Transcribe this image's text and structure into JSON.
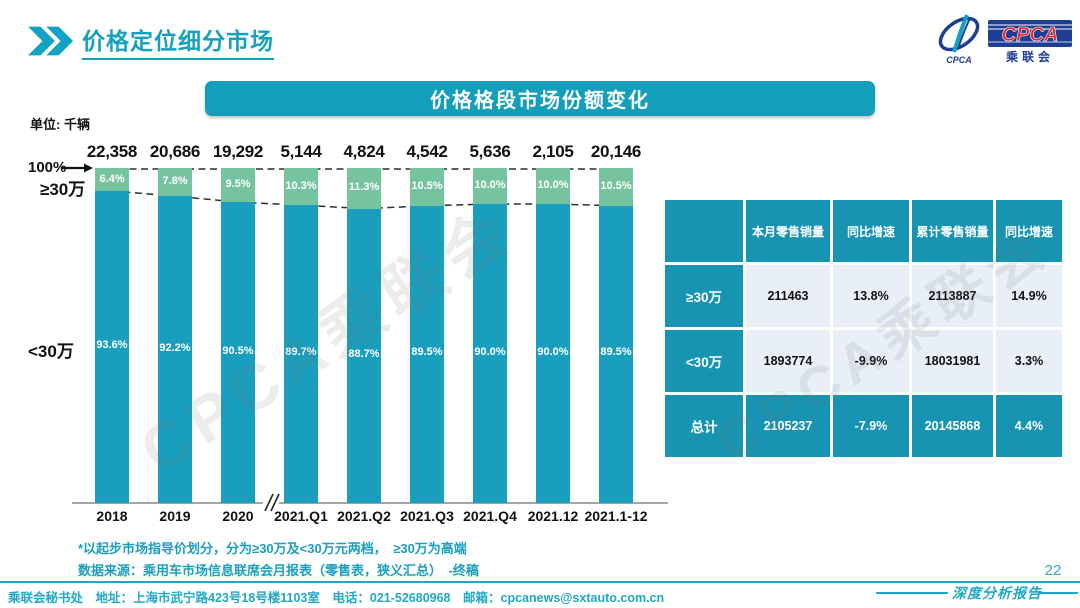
{
  "page": {
    "title": "价格定位细分市场",
    "banner_title": "价格格段市场份额变化",
    "unit_label": "单位: 千辆",
    "watermark": "CPCA乘联会",
    "notes": [
      "*以起步市场指导价划分，分为≥30万及<30万元两档，　≥30万为高端",
      "数据来源：乘用车市场信息联席会月报表（零售表，狭义汇总）　-终稿"
    ],
    "footer_text": "乘联会秘书处　地址：上海市武宁路423号18号楼1103室　电话：021-52680968　邮箱：cpcanews@sxtauto.com.cn",
    "report_label": "深度分析报告",
    "page_number": "22"
  },
  "logo": {
    "en": "CPCA",
    "cn": "乘联会",
    "small": "CPCA"
  },
  "chart_data": {
    "type": "bar",
    "stacked": true,
    "title": "价格格段市场份额变化",
    "unit": "千辆",
    "categories": [
      "2018",
      "2019",
      "2020",
      "2021.Q1",
      "2021.Q2",
      "2021.Q3",
      "2021.Q4",
      "2021.12",
      "2021.1-12"
    ],
    "totals": [
      "22,358",
      "20,686",
      "19,292",
      "5,144",
      "4,824",
      "4,542",
      "5,636",
      "2,105",
      "20,146"
    ],
    "series": [
      {
        "name": "≥30万",
        "values": [
          6.4,
          7.8,
          9.5,
          10.3,
          11.3,
          10.5,
          10.0,
          10.0,
          10.5
        ],
        "color": "#76C3A0"
      },
      {
        "name": "<30万",
        "values": [
          93.6,
          92.2,
          90.5,
          89.7,
          88.7,
          89.5,
          90.0,
          90.0,
          89.5
        ],
        "color": "#199FBD"
      }
    ],
    "y_axis": {
      "marker": "100%",
      "upper_label": "≥30万",
      "lower_label": "<30万"
    },
    "axis_break_after": "2020",
    "ylim": [
      0,
      100
    ],
    "grid": false,
    "legend_position": "none"
  },
  "table": {
    "columns": [
      "",
      "本月零售销量",
      "同比增速",
      "累计零售销量",
      "同比增速"
    ],
    "rows": [
      {
        "label": "≥30万",
        "values": [
          "211463",
          "13.8%",
          "2113887",
          "14.9%"
        ],
        "highlight": false
      },
      {
        "label": "<30万",
        "values": [
          "1893774",
          "-9.9%",
          "18031981",
          "3.3%"
        ],
        "highlight": false
      },
      {
        "label": "总计",
        "values": [
          "2105237",
          "-7.9%",
          "20145868",
          "4.4%"
        ],
        "highlight": true
      }
    ]
  },
  "colors": {
    "bar_teal": "#199FBD",
    "bar_green": "#76C3A0",
    "banner_teal": "#139EBB",
    "table_teal": "#1794B2",
    "cell_light": "#E9EFF7",
    "accent_text": "#1B9FBE",
    "logo_blue": "#1C3E93",
    "logo_red": "#E2262B",
    "axis_gray": "#A6A6A6"
  }
}
